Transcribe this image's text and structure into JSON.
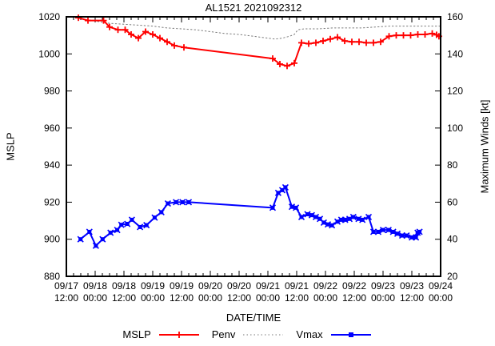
{
  "chart_data": {
    "type": "line",
    "title": "AL1521 2021092312",
    "xlabel": "DATE/TIME",
    "ylabel": "MSLP",
    "y2label": "Maximum Winds [kt]",
    "grid": false,
    "x_axis": {
      "unit": "hours since 09/17 12:00",
      "range": [
        0,
        156
      ],
      "major_tick_hours": 12,
      "minor_tick_hours": 3,
      "tick_labels": [
        {
          "date": "09/17",
          "time": "12:00"
        },
        {
          "date": "09/18",
          "time": "00:00"
        },
        {
          "date": "09/18",
          "time": "12:00"
        },
        {
          "date": "09/19",
          "time": "00:00"
        },
        {
          "date": "09/19",
          "time": "12:00"
        },
        {
          "date": "09/20",
          "time": "00:00"
        },
        {
          "date": "09/20",
          "time": "12:00"
        },
        {
          "date": "09/21",
          "time": "00:00"
        },
        {
          "date": "09/21",
          "time": "12:00"
        },
        {
          "date": "09/22",
          "time": "00:00"
        },
        {
          "date": "09/22",
          "time": "12:00"
        },
        {
          "date": "09/23",
          "time": "00:00"
        },
        {
          "date": "09/23",
          "time": "12:00"
        },
        {
          "date": "09/24",
          "time": "00:00"
        }
      ]
    },
    "y_left": {
      "label": "MSLP",
      "range": [
        880,
        1020
      ],
      "ticks": [
        880,
        900,
        920,
        940,
        960,
        980,
        1000,
        1020
      ]
    },
    "y_right": {
      "label": "Maximum Winds [kt]",
      "range": [
        20,
        160
      ],
      "ticks": [
        20,
        40,
        60,
        80,
        100,
        120,
        140,
        160
      ]
    },
    "legend": {
      "position": "below",
      "entries": [
        {
          "name": "MSLP",
          "color": "#ff0000",
          "style": "solid",
          "marker": "plus"
        },
        {
          "name": "Penv",
          "color": "#7a7a7a",
          "style": "dotted",
          "marker": "none"
        },
        {
          "name": "Vmax",
          "color": "#0000ff",
          "style": "solid",
          "marker": "square-x"
        }
      ]
    },
    "series": [
      {
        "name": "Penv",
        "axis": "left",
        "color": "#7a7a7a",
        "style": "dotted",
        "marker": "none",
        "points": [
          [
            13,
            1017.5
          ],
          [
            18,
            1016.5
          ],
          [
            24,
            1016
          ],
          [
            30,
            1015.5
          ],
          [
            36,
            1015
          ],
          [
            42,
            1014
          ],
          [
            48,
            1013.5
          ],
          [
            54,
            1013
          ],
          [
            60,
            1012
          ],
          [
            66,
            1011
          ],
          [
            72,
            1010.5
          ],
          [
            78,
            1009.5
          ],
          [
            84,
            1008.5
          ],
          [
            87,
            1008
          ],
          [
            90,
            1008.5
          ],
          [
            93,
            1009.5
          ],
          [
            95,
            1010.5
          ],
          [
            96.5,
            1013
          ],
          [
            99,
            1013.5
          ],
          [
            105,
            1013.5
          ],
          [
            111,
            1014
          ],
          [
            117,
            1014
          ],
          [
            123,
            1014
          ],
          [
            129,
            1014.5
          ],
          [
            135,
            1015
          ],
          [
            141,
            1015
          ],
          [
            147,
            1015
          ],
          [
            153,
            1015
          ],
          [
            156,
            1015
          ]
        ]
      },
      {
        "name": "MSLP",
        "axis": "left",
        "color": "#ff0000",
        "style": "solid",
        "marker": "plus",
        "points": [
          [
            5,
            1019.5
          ],
          [
            9,
            1018
          ],
          [
            15.5,
            1018
          ],
          [
            18,
            1014.5
          ],
          [
            21.5,
            1013
          ],
          [
            24.5,
            1013
          ],
          [
            27,
            1010.5
          ],
          [
            30,
            1008.5
          ],
          [
            33,
            1012
          ],
          [
            36,
            1010.5
          ],
          [
            39,
            1008.5
          ],
          [
            42,
            1006.5
          ],
          [
            45,
            1004.5
          ],
          [
            49,
            1003.5
          ],
          [
            86,
            997.5
          ],
          [
            89,
            994.5
          ],
          [
            92,
            993.5
          ],
          [
            95,
            995
          ],
          [
            98,
            1006
          ],
          [
            101,
            1005.5
          ],
          [
            104,
            1006
          ],
          [
            107,
            1007
          ],
          [
            110,
            1008
          ],
          [
            113,
            1009
          ],
          [
            116,
            1007
          ],
          [
            119,
            1006.5
          ],
          [
            122,
            1006.5
          ],
          [
            125,
            1006
          ],
          [
            128,
            1006
          ],
          [
            131,
            1006.5
          ],
          [
            134.5,
            1009.5
          ],
          [
            137.5,
            1010
          ],
          [
            140.5,
            1010
          ],
          [
            143.5,
            1010
          ],
          [
            146.5,
            1010.5
          ],
          [
            149.5,
            1010.5
          ],
          [
            152.5,
            1011
          ],
          [
            154.3,
            1010.3
          ],
          [
            155.3,
            1009.5
          ]
        ]
      },
      {
        "name": "Vmax",
        "axis": "right",
        "color": "#0000ff",
        "style": "solid",
        "marker": "square-x",
        "points": [
          [
            5.9,
            40
          ],
          [
            9.6,
            44
          ],
          [
            12.3,
            36.5
          ],
          [
            15.1,
            40
          ],
          [
            18.4,
            43.5
          ],
          [
            21.2,
            45
          ],
          [
            22.9,
            47.8
          ],
          [
            25.4,
            48.3
          ],
          [
            27.3,
            50.5
          ],
          [
            30.7,
            46.6
          ],
          [
            33.4,
            47.6
          ],
          [
            36.8,
            51.7
          ],
          [
            39.6,
            54.6
          ],
          [
            42.3,
            59.3
          ],
          [
            45.7,
            60
          ],
          [
            48.4,
            60
          ],
          [
            51,
            60
          ],
          [
            86,
            57
          ],
          [
            88.3,
            65
          ],
          [
            90,
            66.5
          ],
          [
            91.3,
            68
          ],
          [
            94,
            57.5
          ],
          [
            95.7,
            57
          ],
          [
            98,
            52
          ],
          [
            100.5,
            53.5
          ],
          [
            102.3,
            53
          ],
          [
            104,
            52
          ],
          [
            105.7,
            51
          ],
          [
            107.3,
            49
          ],
          [
            109,
            48
          ],
          [
            110.7,
            47.5
          ],
          [
            113,
            49.5
          ],
          [
            114.6,
            50.5
          ],
          [
            116.2,
            50.5
          ],
          [
            118,
            51
          ],
          [
            119.6,
            52
          ],
          [
            121.8,
            51
          ],
          [
            123.4,
            50.5
          ],
          [
            126,
            52
          ],
          [
            128,
            44
          ],
          [
            130,
            44
          ],
          [
            132,
            45
          ],
          [
            134.3,
            45
          ],
          [
            136.2,
            44
          ],
          [
            138,
            43
          ],
          [
            140,
            42
          ],
          [
            141.8,
            42
          ],
          [
            144,
            41
          ],
          [
            145.7,
            41
          ],
          [
            146.4,
            43.5
          ],
          [
            147.2,
            44
          ]
        ]
      }
    ]
  }
}
